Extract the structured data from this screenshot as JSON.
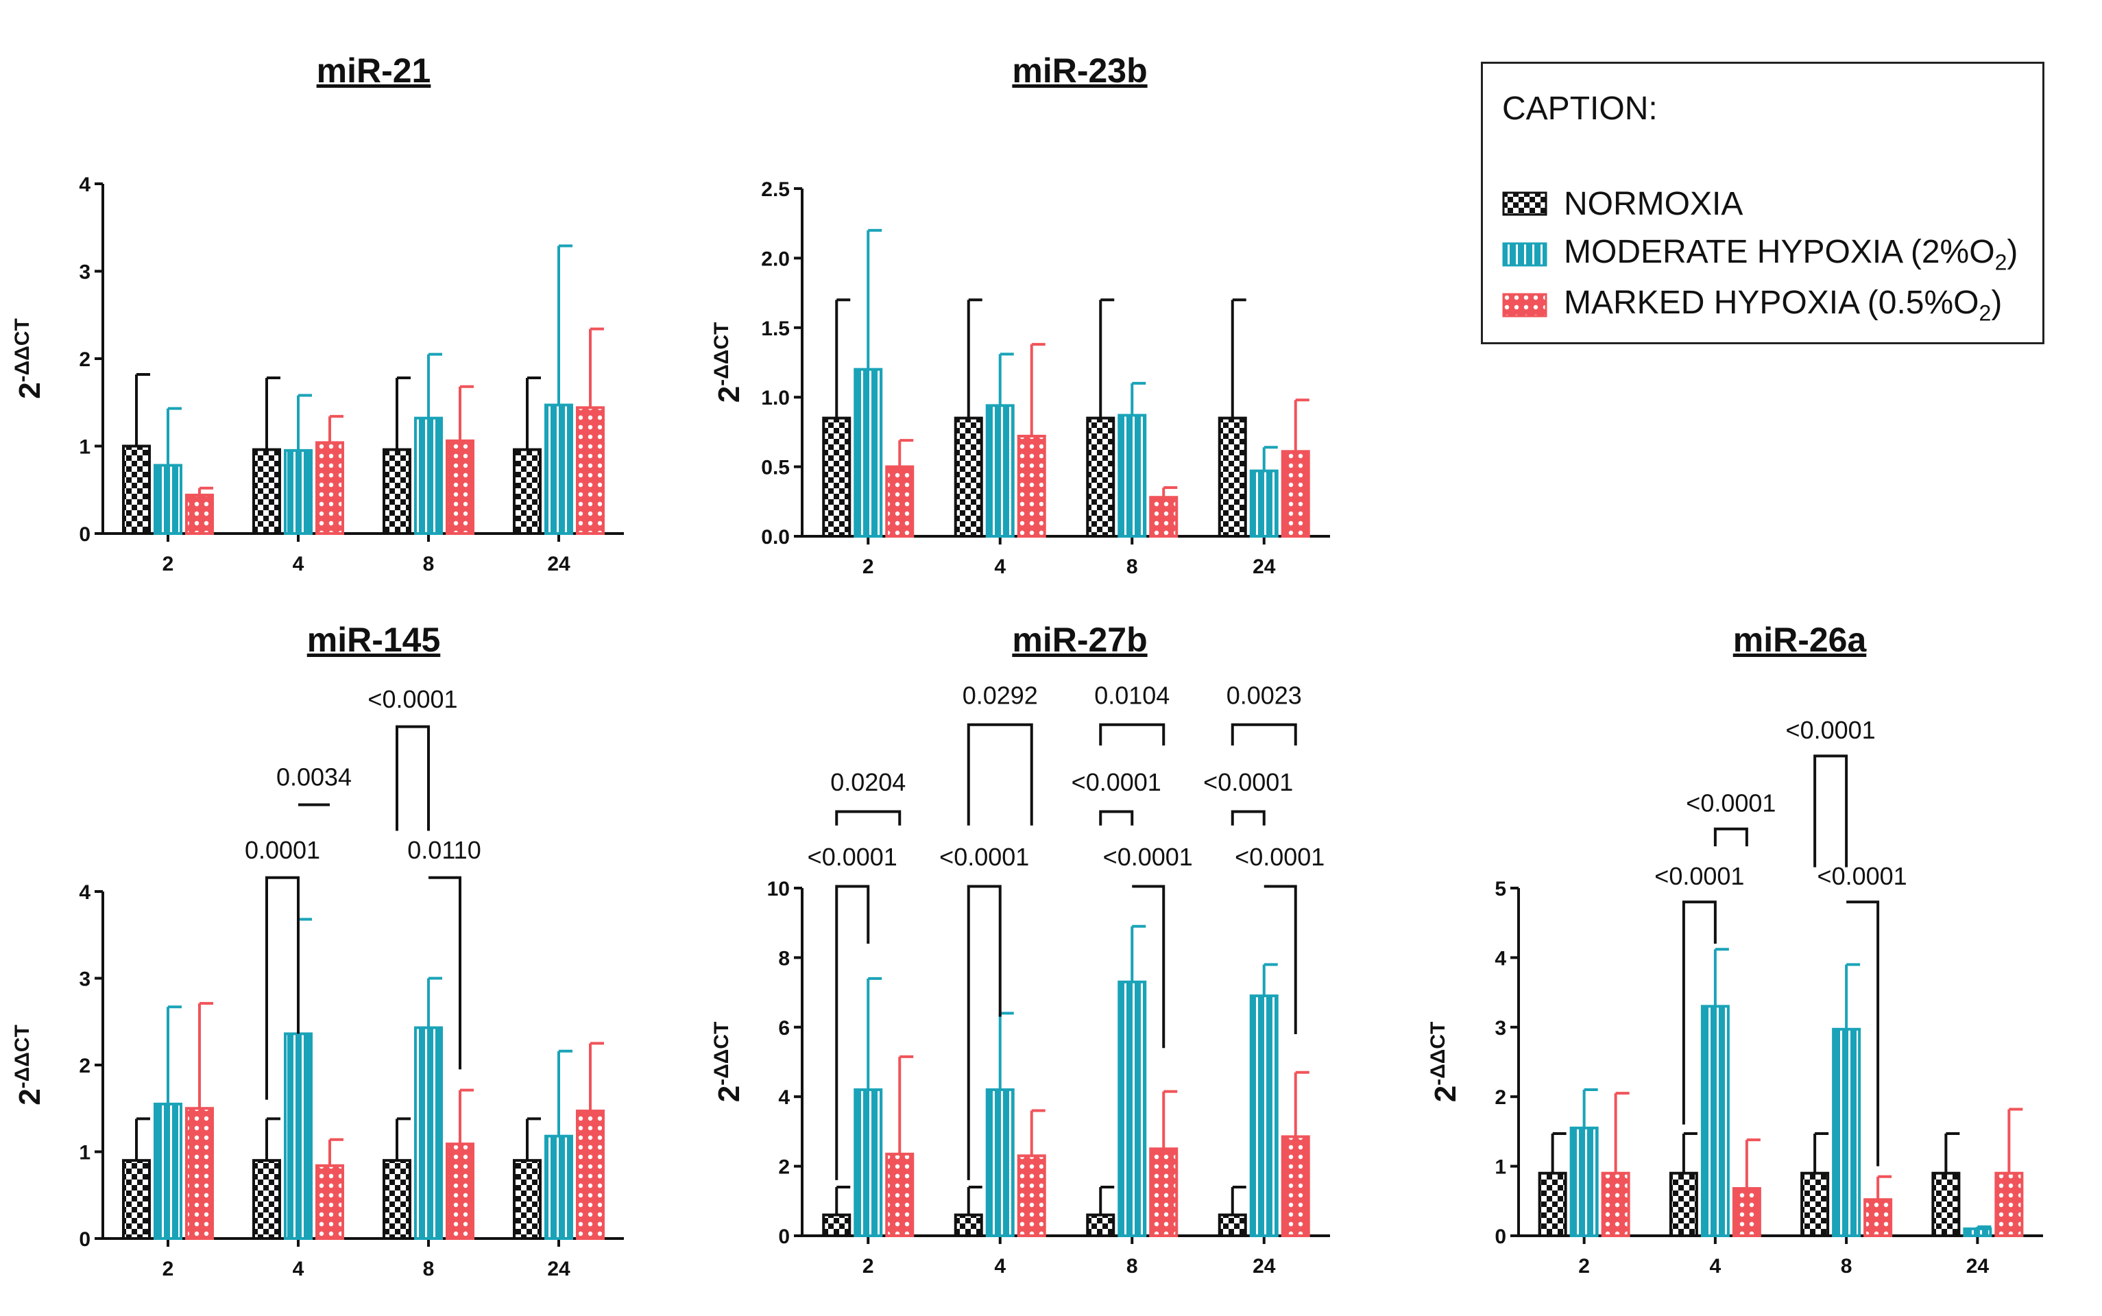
{
  "legend": {
    "title": "CAPTION:",
    "items": [
      {
        "label": "NORMOXIA",
        "subscript": "",
        "suffix": "",
        "color": "#111111",
        "pattern": "checker"
      },
      {
        "label": "MODERATE HYPOXIA (2%O",
        "subscript": "2",
        "suffix": ")",
        "color": "#1aa3b8",
        "pattern": "stripes"
      },
      {
        "label": "MARKED HYPOXIA (0.5%O",
        "subscript": "2",
        "suffix": ")",
        "color": "#f0545a",
        "pattern": "dots"
      }
    ]
  },
  "chart_data": [
    {
      "type": "bar",
      "title": "miR-21",
      "ylabel": "2-ΔΔCT",
      "ylim": [
        0,
        4
      ],
      "yticks": [
        "0",
        "1",
        "2",
        "3",
        "4"
      ],
      "categories": [
        "2",
        "4",
        "8",
        "24"
      ],
      "series": [
        {
          "name": "NORMOXIA",
          "values": [
            1.0,
            0.96,
            0.96,
            0.96
          ],
          "errors": [
            0.82,
            0.82,
            0.82,
            0.82
          ]
        },
        {
          "name": "MODERATE HYPOXIA (2%O2)",
          "values": [
            0.78,
            0.95,
            1.32,
            1.47
          ],
          "errors": [
            0.65,
            0.63,
            0.73,
            1.82
          ]
        },
        {
          "name": "MARKED HYPOXIA (0.5%O2)",
          "values": [
            0.44,
            1.04,
            1.06,
            1.44
          ],
          "errors": [
            0.08,
            0.3,
            0.62,
            0.9
          ]
        }
      ],
      "brackets": []
    },
    {
      "type": "bar",
      "title": "miR-23b",
      "ylabel": "2-ΔΔCT",
      "ylim": [
        0,
        2.5
      ],
      "yticks": [
        "0.0",
        "0.5",
        "1.0",
        "1.5",
        "2.0",
        "2.5"
      ],
      "categories": [
        "2",
        "4",
        "8",
        "24"
      ],
      "series": [
        {
          "name": "NORMOXIA",
          "values": [
            0.85,
            0.85,
            0.85,
            0.85
          ],
          "errors": [
            0.85,
            0.85,
            0.85,
            0.85
          ]
        },
        {
          "name": "MODERATE HYPOXIA (2%O2)",
          "values": [
            1.2,
            0.94,
            0.87,
            0.47
          ],
          "errors": [
            1.0,
            0.37,
            0.23,
            0.17
          ]
        },
        {
          "name": "MARKED HYPOXIA (0.5%O2)",
          "values": [
            0.5,
            0.72,
            0.28,
            0.61
          ],
          "errors": [
            0.19,
            0.66,
            0.07,
            0.37
          ]
        }
      ],
      "brackets": []
    },
    {
      "type": "bar",
      "title": "miR-145",
      "ylabel": "2-ΔΔCT",
      "ylim": [
        0,
        4
      ],
      "yticks": [
        "0",
        "1",
        "2",
        "3",
        "4"
      ],
      "categories": [
        "2",
        "4",
        "8",
        "24"
      ],
      "series": [
        {
          "name": "NORMOXIA",
          "values": [
            0.9,
            0.9,
            0.9,
            0.9
          ],
          "errors": [
            0.48,
            0.48,
            0.48,
            0.48
          ]
        },
        {
          "name": "MODERATE HYPOXIA (2%O2)",
          "values": [
            1.55,
            2.36,
            2.43,
            1.18
          ],
          "errors": [
            1.12,
            1.32,
            0.57,
            0.98
          ]
        },
        {
          "name": "MARKED HYPOXIA (0.5%O2)",
          "values": [
            1.5,
            0.84,
            1.09,
            1.47
          ],
          "errors": [
            1.21,
            0.3,
            0.62,
            0.78
          ]
        }
      ],
      "brackets": [
        {
          "group": 1,
          "from": 0,
          "to": 1,
          "left_to": 1.6,
          "right_to": 2.36,
          "top": 4.16,
          "text": "0.0001",
          "text_y": 4.38
        },
        {
          "group": 1,
          "from": 1,
          "to": 2,
          "left_to": 5.0,
          "right_to": 5.0,
          "top": 5.0,
          "text": "0.0034",
          "text_y": 5.22
        },
        {
          "group": 2,
          "from": 0,
          "to": 1,
          "left_to": 4.7,
          "right_to": 4.7,
          "top": 5.9,
          "text": "<0.0001",
          "text_y": 6.12
        },
        {
          "group": 2,
          "from": 1,
          "to": 2,
          "left_to": 4.16,
          "right_to": 1.95,
          "top": 4.16,
          "text": "0.0110",
          "text_y": 4.38
        }
      ]
    },
    {
      "type": "bar",
      "title": "miR-27b",
      "ylabel": "2-ΔΔCT",
      "ylim": [
        0,
        10
      ],
      "yticks": [
        "0",
        "2",
        "4",
        "6",
        "8",
        "10"
      ],
      "categories": [
        "2",
        "4",
        "8",
        "24"
      ],
      "series": [
        {
          "name": "NORMOXIA",
          "values": [
            0.6,
            0.6,
            0.6,
            0.6
          ],
          "errors": [
            0.8,
            0.8,
            0.8,
            0.8
          ]
        },
        {
          "name": "MODERATE HYPOXIA (2%O2)",
          "values": [
            4.2,
            4.2,
            7.3,
            6.9
          ],
          "errors": [
            3.2,
            2.2,
            1.6,
            0.9
          ]
        },
        {
          "name": "MARKED HYPOXIA (0.5%O2)",
          "values": [
            2.35,
            2.3,
            2.5,
            2.85
          ],
          "errors": [
            2.8,
            1.3,
            1.65,
            1.85
          ]
        }
      ],
      "brackets": [
        {
          "group": 0,
          "from": 0,
          "to": 1,
          "left_to": 1.6,
          "right_to": 8.4,
          "top": 10.05,
          "text": "<0.0001",
          "text_y": 10.65
        },
        {
          "group": 0,
          "from": 0,
          "to": 2,
          "left_to": 11.8,
          "right_to": 11.8,
          "top": 12.2,
          "text": "0.0204",
          "text_y": 12.8
        },
        {
          "group": 1,
          "from": 0,
          "to": 1,
          "left_to": 1.6,
          "right_to": 6.3,
          "top": 10.05,
          "text": "<0.0001",
          "text_y": 10.65
        },
        {
          "group": 1,
          "from": 0,
          "to": 2,
          "left_to": 11.8,
          "right_to": 11.8,
          "top": 14.7,
          "text": "0.0292",
          "text_y": 15.3
        },
        {
          "group": 2,
          "from": 0,
          "to": 1,
          "left_to": 11.8,
          "right_to": 11.8,
          "top": 12.2,
          "text": "<0.0001",
          "text_y": 12.8
        },
        {
          "group": 2,
          "from": 1,
          "to": 2,
          "left_to": 10.05,
          "right_to": 5.4,
          "top": 10.05,
          "text": "<0.0001",
          "text_y": 10.65
        },
        {
          "group": 2,
          "from": 0,
          "to": 2,
          "left_to": 14.1,
          "right_to": 14.1,
          "top": 14.7,
          "text": "0.0104",
          "text_y": 15.3
        },
        {
          "group": 3,
          "from": 0,
          "to": 1,
          "left_to": 11.8,
          "right_to": 11.8,
          "top": 12.2,
          "text": "<0.0001",
          "text_y": 12.8
        },
        {
          "group": 3,
          "from": 1,
          "to": 2,
          "left_to": 10.05,
          "right_to": 5.8,
          "top": 10.05,
          "text": "<0.0001",
          "text_y": 10.65
        },
        {
          "group": 3,
          "from": 0,
          "to": 2,
          "left_to": 14.1,
          "right_to": 14.1,
          "top": 14.7,
          "text": "0.0023",
          "text_y": 15.3
        }
      ]
    },
    {
      "type": "bar",
      "title": "miR-26a",
      "ylabel": "2-ΔΔCT",
      "ylim": [
        0,
        5
      ],
      "yticks": [
        "0",
        "1",
        "2",
        "3",
        "4",
        "5"
      ],
      "categories": [
        "2",
        "4",
        "8",
        "24"
      ],
      "series": [
        {
          "name": "NORMOXIA",
          "values": [
            0.9,
            0.9,
            0.9,
            0.9
          ],
          "errors": [
            0.57,
            0.57,
            0.57,
            0.57
          ]
        },
        {
          "name": "MODERATE HYPOXIA (2%O2)",
          "values": [
            1.55,
            3.3,
            2.97,
            0.1
          ],
          "errors": [
            0.55,
            0.82,
            0.93,
            0.03
          ]
        },
        {
          "name": "MARKED HYPOXIA (0.5%O2)",
          "values": [
            0.9,
            0.68,
            0.52,
            0.9
          ],
          "errors": [
            1.15,
            0.7,
            0.33,
            0.92
          ]
        }
      ],
      "brackets": [
        {
          "group": 1,
          "from": 0,
          "to": 1,
          "left_to": 1.6,
          "right_to": 4.2,
          "top": 4.8,
          "text": "<0.0001",
          "text_y": 5.05
        },
        {
          "group": 1,
          "from": 1,
          "to": 2,
          "left_to": 5.6,
          "right_to": 5.6,
          "top": 5.85,
          "text": "<0.0001",
          "text_y": 6.1
        },
        {
          "group": 2,
          "from": 0,
          "to": 1,
          "left_to": 5.3,
          "right_to": 5.3,
          "top": 6.9,
          "text": "<0.0001",
          "text_y": 7.15
        },
        {
          "group": 2,
          "from": 1,
          "to": 2,
          "left_to": 4.8,
          "right_to": 1.0,
          "top": 4.8,
          "text": "<0.0001",
          "text_y": 5.05
        }
      ]
    }
  ]
}
